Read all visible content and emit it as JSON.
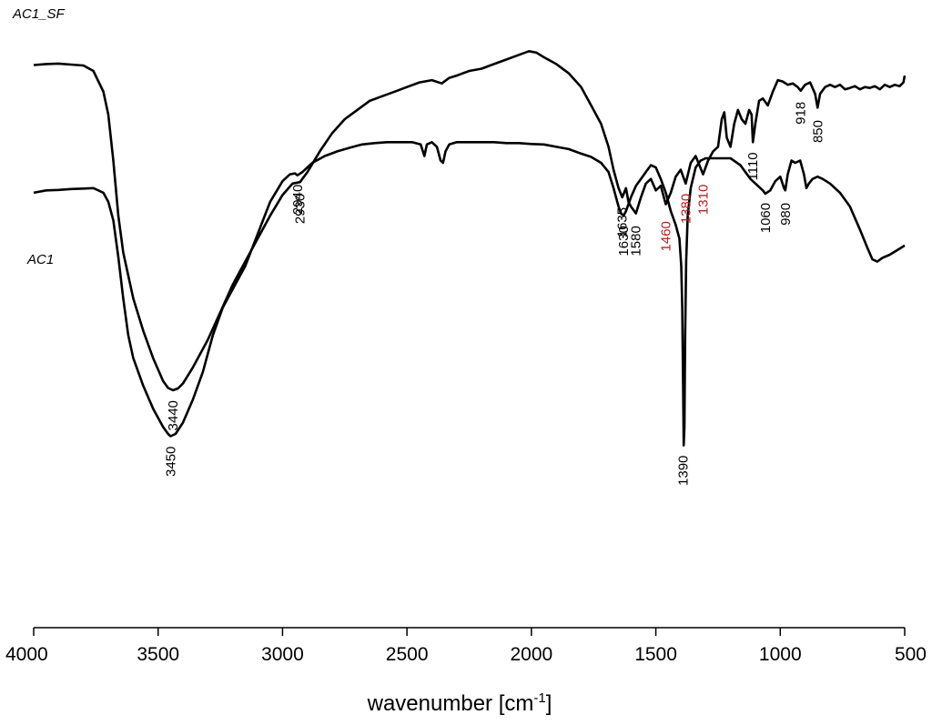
{
  "chart_data": {
    "type": "line",
    "xlabel": "wavenumber [cm",
    "xlabel_superscript": "-1",
    "xlabel_suffix": "]",
    "xlim": [
      4000,
      500
    ],
    "x_reversed": true,
    "ticks": [
      4000,
      3500,
      3000,
      2500,
      2000,
      1500,
      1000,
      500
    ],
    "tick_labels": [
      "4000",
      "3500",
      "3000",
      "2500",
      "2000",
      "1500",
      "1000",
      "500"
    ],
    "y_axis_shown": false,
    "ylim": [
      0,
      100
    ],
    "grid": false,
    "legend": "none",
    "series": [
      {
        "name": "AC1_SF",
        "color": "#000000",
        "points": [
          [
            4000,
            90.8
          ],
          [
            3950,
            91.0
          ],
          [
            3900,
            91.1
          ],
          [
            3850,
            90.9
          ],
          [
            3800,
            90.7
          ],
          [
            3760,
            89.5
          ],
          [
            3720,
            85.0
          ],
          [
            3700,
            80.0
          ],
          [
            3680,
            70.0
          ],
          [
            3660,
            58.0
          ],
          [
            3640,
            50.0
          ],
          [
            3620,
            45.0
          ],
          [
            3600,
            40.0
          ],
          [
            3560,
            33.0
          ],
          [
            3520,
            27.0
          ],
          [
            3480,
            22.0
          ],
          [
            3460,
            20.5
          ],
          [
            3440,
            20.0
          ],
          [
            3420,
            20.4
          ],
          [
            3400,
            21.5
          ],
          [
            3360,
            25.0
          ],
          [
            3300,
            31.0
          ],
          [
            3250,
            37.0
          ],
          [
            3200,
            43.0
          ],
          [
            3150,
            48.0
          ],
          [
            3100,
            53.0
          ],
          [
            3050,
            58.0
          ],
          [
            3000,
            62.5
          ],
          [
            2960,
            65.0
          ],
          [
            2930,
            65.3
          ],
          [
            2900,
            67.5
          ],
          [
            2850,
            72.0
          ],
          [
            2800,
            76.0
          ],
          [
            2750,
            79.0
          ],
          [
            2700,
            81.0
          ],
          [
            2650,
            83.0
          ],
          [
            2600,
            84.0
          ],
          [
            2550,
            85.0
          ],
          [
            2500,
            86.0
          ],
          [
            2450,
            87.0
          ],
          [
            2400,
            87.5
          ],
          [
            2360,
            86.8
          ],
          [
            2330,
            88.0
          ],
          [
            2300,
            88.5
          ],
          [
            2250,
            89.5
          ],
          [
            2200,
            90.0
          ],
          [
            2150,
            91.0
          ],
          [
            2100,
            92.0
          ],
          [
            2050,
            93.0
          ],
          [
            2010,
            93.8
          ],
          [
            1980,
            93.5
          ],
          [
            1950,
            92.5
          ],
          [
            1900,
            91.0
          ],
          [
            1850,
            89.0
          ],
          [
            1800,
            86.0
          ],
          [
            1760,
            82.0
          ],
          [
            1720,
            78.0
          ],
          [
            1690,
            73.0
          ],
          [
            1670,
            68.0
          ],
          [
            1650,
            64.0
          ],
          [
            1635,
            62.0
          ],
          [
            1620,
            64.0
          ],
          [
            1610,
            61.0
          ],
          [
            1600,
            60.0
          ],
          [
            1580,
            58.5
          ],
          [
            1560,
            62.0
          ],
          [
            1540,
            65.0
          ],
          [
            1520,
            66.0
          ],
          [
            1500,
            63.5
          ],
          [
            1480,
            64.5
          ],
          [
            1460,
            60.5
          ],
          [
            1440,
            63.0
          ],
          [
            1420,
            66.5
          ],
          [
            1400,
            68.0
          ],
          [
            1380,
            65.0
          ],
          [
            1360,
            69.5
          ],
          [
            1340,
            71.0
          ],
          [
            1310,
            67.0
          ],
          [
            1290,
            70.0
          ],
          [
            1270,
            72.0
          ],
          [
            1250,
            73.0
          ],
          [
            1235,
            79.0
          ],
          [
            1225,
            80.5
          ],
          [
            1215,
            75.0
          ],
          [
            1200,
            73.0
          ],
          [
            1185,
            78.0
          ],
          [
            1170,
            81.0
          ],
          [
            1155,
            79.0
          ],
          [
            1140,
            78.0
          ],
          [
            1125,
            81.0
          ],
          [
            1115,
            80.0
          ],
          [
            1110,
            74.0
          ],
          [
            1100,
            78.0
          ],
          [
            1085,
            83.0
          ],
          [
            1070,
            83.5
          ],
          [
            1050,
            82.0
          ],
          [
            1030,
            85.0
          ],
          [
            1010,
            87.5
          ],
          [
            990,
            87.2
          ],
          [
            970,
            86.5
          ],
          [
            950,
            86.8
          ],
          [
            930,
            86.0
          ],
          [
            918,
            85.2
          ],
          [
            900,
            86.5
          ],
          [
            880,
            87.0
          ],
          [
            860,
            84.5
          ],
          [
            850,
            81.5
          ],
          [
            840,
            84.5
          ],
          [
            820,
            86.0
          ],
          [
            800,
            86.5
          ],
          [
            780,
            86.0
          ],
          [
            760,
            86.5
          ],
          [
            740,
            85.5
          ],
          [
            720,
            85.8
          ],
          [
            700,
            86.2
          ],
          [
            680,
            85.5
          ],
          [
            660,
            86.0
          ],
          [
            640,
            85.8
          ],
          [
            620,
            86.2
          ],
          [
            600,
            85.5
          ],
          [
            580,
            86.5
          ],
          [
            560,
            86.0
          ],
          [
            540,
            86.5
          ],
          [
            520,
            86.2
          ],
          [
            505,
            87.0
          ],
          [
            500,
            88.5
          ]
        ]
      },
      {
        "name": "AC1",
        "color": "#000000",
        "points": [
          [
            4000,
            63.0
          ],
          [
            3950,
            63.5
          ],
          [
            3900,
            63.6
          ],
          [
            3850,
            63.8
          ],
          [
            3800,
            63.9
          ],
          [
            3760,
            64.0
          ],
          [
            3740,
            63.5
          ],
          [
            3720,
            63.0
          ],
          [
            3700,
            61.0
          ],
          [
            3680,
            57.0
          ],
          [
            3660,
            49.0
          ],
          [
            3640,
            40.0
          ],
          [
            3620,
            32.0
          ],
          [
            3600,
            27.0
          ],
          [
            3560,
            21.0
          ],
          [
            3520,
            16.0
          ],
          [
            3480,
            12.0
          ],
          [
            3460,
            10.5
          ],
          [
            3450,
            10.0
          ],
          [
            3430,
            10.5
          ],
          [
            3400,
            13.0
          ],
          [
            3360,
            18.0
          ],
          [
            3320,
            24.0
          ],
          [
            3280,
            32.0
          ],
          [
            3240,
            38.0
          ],
          [
            3200,
            42.0
          ],
          [
            3150,
            47.0
          ],
          [
            3100,
            54.0
          ],
          [
            3050,
            61.0
          ],
          [
            3000,
            65.5
          ],
          [
            2970,
            67.0
          ],
          [
            2950,
            67.2
          ],
          [
            2940,
            66.8
          ],
          [
            2920,
            67.5
          ],
          [
            2880,
            69.5
          ],
          [
            2830,
            71.0
          ],
          [
            2780,
            72.0
          ],
          [
            2730,
            72.8
          ],
          [
            2680,
            73.5
          ],
          [
            2630,
            73.8
          ],
          [
            2580,
            74.0
          ],
          [
            2530,
            74.0
          ],
          [
            2480,
            74.0
          ],
          [
            2445,
            73.5
          ],
          [
            2430,
            71.0
          ],
          [
            2420,
            73.5
          ],
          [
            2400,
            74.0
          ],
          [
            2380,
            73.0
          ],
          [
            2365,
            70.0
          ],
          [
            2355,
            69.5
          ],
          [
            2345,
            72.0
          ],
          [
            2330,
            73.5
          ],
          [
            2300,
            74.0
          ],
          [
            2250,
            74.0
          ],
          [
            2200,
            74.0
          ],
          [
            2150,
            74.0
          ],
          [
            2100,
            73.8
          ],
          [
            2050,
            73.8
          ],
          [
            2000,
            73.6
          ],
          [
            1950,
            73.5
          ],
          [
            1900,
            73.0
          ],
          [
            1850,
            72.5
          ],
          [
            1800,
            71.5
          ],
          [
            1760,
            70.8
          ],
          [
            1720,
            69.5
          ],
          [
            1690,
            67.5
          ],
          [
            1670,
            64.0
          ],
          [
            1650,
            60.0
          ],
          [
            1640,
            58.5
          ],
          [
            1630,
            58.0
          ],
          [
            1620,
            59.0
          ],
          [
            1600,
            62.0
          ],
          [
            1580,
            64.5
          ],
          [
            1560,
            66.0
          ],
          [
            1540,
            67.5
          ],
          [
            1520,
            69.0
          ],
          [
            1500,
            68.5
          ],
          [
            1480,
            66.0
          ],
          [
            1460,
            63.0
          ],
          [
            1440,
            59.0
          ],
          [
            1420,
            56.0
          ],
          [
            1405,
            53.0
          ],
          [
            1398,
            47.0
          ],
          [
            1394,
            38.0
          ],
          [
            1390,
            20.0
          ],
          [
            1388,
            8.0
          ],
          [
            1385,
            12.0
          ],
          [
            1382,
            32.0
          ],
          [
            1378,
            48.0
          ],
          [
            1372,
            58.0
          ],
          [
            1360,
            64.0
          ],
          [
            1340,
            68.5
          ],
          [
            1320,
            70.0
          ],
          [
            1300,
            70.5
          ],
          [
            1250,
            70.5
          ],
          [
            1200,
            70.5
          ],
          [
            1160,
            69.0
          ],
          [
            1120,
            66.0
          ],
          [
            1090,
            64.5
          ],
          [
            1070,
            63.5
          ],
          [
            1060,
            62.8
          ],
          [
            1040,
            63.5
          ],
          [
            1020,
            65.5
          ],
          [
            1000,
            66.5
          ],
          [
            985,
            64.0
          ],
          [
            980,
            63.5
          ],
          [
            970,
            67.0
          ],
          [
            955,
            70.0
          ],
          [
            940,
            69.5
          ],
          [
            920,
            70.0
          ],
          [
            905,
            67.0
          ],
          [
            895,
            64.0
          ],
          [
            885,
            65.0
          ],
          [
            870,
            66.0
          ],
          [
            850,
            66.5
          ],
          [
            830,
            66.0
          ],
          [
            800,
            65.0
          ],
          [
            760,
            63.0
          ],
          [
            720,
            60.0
          ],
          [
            680,
            55.0
          ],
          [
            650,
            51.0
          ],
          [
            630,
            48.5
          ],
          [
            610,
            48.0
          ],
          [
            590,
            48.8
          ],
          [
            560,
            49.5
          ],
          [
            530,
            50.5
          ],
          [
            500,
            51.5
          ]
        ]
      }
    ],
    "annotations": [
      {
        "text": "3440",
        "x": 3440,
        "y": 19,
        "color": "#000000"
      },
      {
        "text": "2930",
        "x": 2930,
        "y": 64,
        "color": "#000000"
      },
      {
        "text": "1635",
        "x": 1635,
        "y": 61,
        "color": "#000000"
      },
      {
        "text": "1580",
        "x": 1580,
        "y": 57,
        "color": "#000000"
      },
      {
        "text": "1460",
        "x": 1460,
        "y": 58,
        "color": "#b22222"
      },
      {
        "text": "1380",
        "x": 1380,
        "y": 64,
        "color": "#b22222"
      },
      {
        "text": "1310",
        "x": 1310,
        "y": 66,
        "color": "#b22222"
      },
      {
        "text": "1110",
        "x": 1110,
        "y": 73,
        "color": "#000000"
      },
      {
        "text": "918",
        "x": 918,
        "y": 84,
        "color": "#000000"
      },
      {
        "text": "850",
        "x": 850,
        "y": 80,
        "color": "#000000"
      },
      {
        "text": "3450",
        "x": 3450,
        "y": 9,
        "color": "#000000"
      },
      {
        "text": "2940",
        "x": 2940,
        "y": 66,
        "color": "#000000"
      },
      {
        "text": "1630",
        "x": 1630,
        "y": 57,
        "color": "#000000"
      },
      {
        "text": "1390",
        "x": 1390,
        "y": 7,
        "color": "#000000"
      },
      {
        "text": "1060",
        "x": 1060,
        "y": 62,
        "color": "#000000"
      },
      {
        "text": "980",
        "x": 980,
        "y": 62,
        "color": "#000000"
      }
    ]
  }
}
